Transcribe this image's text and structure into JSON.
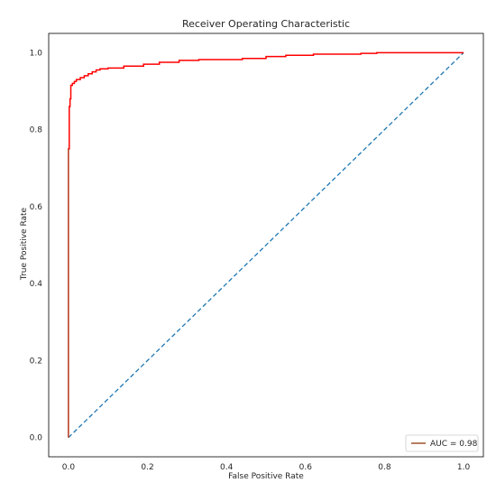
{
  "chart_data": {
    "type": "line",
    "title": "Receiver Operating Characteristic",
    "xlabel": "False Positive Rate",
    "ylabel": "True Positive Rate",
    "xlim": [
      -0.05,
      1.05
    ],
    "ylim": [
      -0.05,
      1.05
    ],
    "x_ticks": [
      "0.0",
      "0.2",
      "0.4",
      "0.6",
      "0.8",
      "1.0"
    ],
    "y_ticks": [
      "0.0",
      "0.2",
      "0.4",
      "0.6",
      "0.8",
      "1.0"
    ],
    "x_tick_values": [
      0.0,
      0.2,
      0.4,
      0.6,
      0.8,
      1.0
    ],
    "y_tick_values": [
      0.0,
      0.2,
      0.4,
      0.6,
      0.8,
      1.0
    ],
    "grid": false,
    "legend_position": "lower-right",
    "legend_label": "AUC = 0.98",
    "series": [
      {
        "name": "AUC = 0.98",
        "color": "#ff0000",
        "style": "step",
        "x": [
          0.0,
          0.0,
          0.002,
          0.002,
          0.004,
          0.004,
          0.006,
          0.006,
          0.01,
          0.01,
          0.015,
          0.015,
          0.02,
          0.02,
          0.03,
          0.03,
          0.04,
          0.04,
          0.05,
          0.05,
          0.06,
          0.06,
          0.07,
          0.07,
          0.08,
          0.08,
          0.1,
          0.1,
          0.14,
          0.14,
          0.19,
          0.19,
          0.23,
          0.23,
          0.28,
          0.28,
          0.33,
          0.33,
          0.44,
          0.44,
          0.5,
          0.5,
          0.55,
          0.55,
          0.62,
          0.62,
          0.74,
          0.74,
          0.78,
          0.78,
          1.0
        ],
        "y": [
          0.0,
          0.75,
          0.75,
          0.86,
          0.86,
          0.88,
          0.88,
          0.915,
          0.915,
          0.92,
          0.92,
          0.925,
          0.925,
          0.93,
          0.93,
          0.935,
          0.935,
          0.94,
          0.94,
          0.945,
          0.945,
          0.95,
          0.95,
          0.955,
          0.955,
          0.958,
          0.958,
          0.96,
          0.96,
          0.965,
          0.965,
          0.97,
          0.97,
          0.975,
          0.975,
          0.98,
          0.98,
          0.982,
          0.982,
          0.985,
          0.985,
          0.99,
          0.99,
          0.993,
          0.993,
          0.996,
          0.996,
          0.998,
          0.998,
          1.0,
          1.0
        ]
      },
      {
        "name": "",
        "color": "#1f77b4",
        "style": "dashed",
        "x": [
          0.0,
          1.0
        ],
        "y": [
          0.0,
          1.0
        ]
      }
    ]
  },
  "colors": {
    "roc_line": "#ff0000",
    "legend_line": "#a0522d",
    "diagonal": "#1f77b4",
    "frame": "#000000",
    "text": "#262626"
  }
}
